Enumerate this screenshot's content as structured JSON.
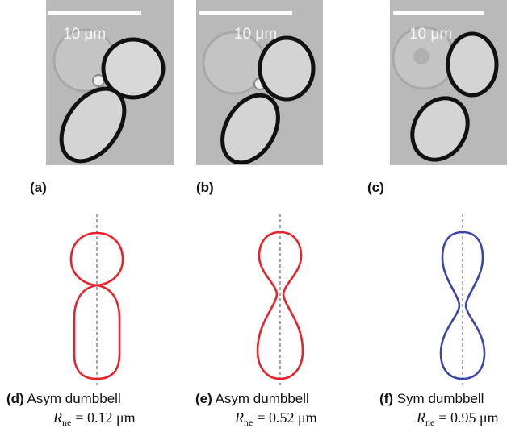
{
  "panels": [
    {
      "scale_bar": "10 μm",
      "label": "(a)"
    },
    {
      "scale_bar": "10 μm",
      "label": "(b)"
    },
    {
      "scale_bar": "10 μm",
      "label": "(c)"
    }
  ],
  "shapes": [
    {
      "label": "(d)",
      "name": "Asym dumbbell",
      "symbol": "R",
      "subscript": "ne",
      "relation": "= 0.12 μm"
    },
    {
      "label": "(e)",
      "name": "Asym dumbbell",
      "symbol": "R",
      "subscript": "ne",
      "relation": "= 0.52 μm"
    },
    {
      "label": "(f)",
      "name": "Sym dumbbell",
      "symbol": "R",
      "subscript": "ne",
      "relation": "= 0.95 μm"
    }
  ]
}
